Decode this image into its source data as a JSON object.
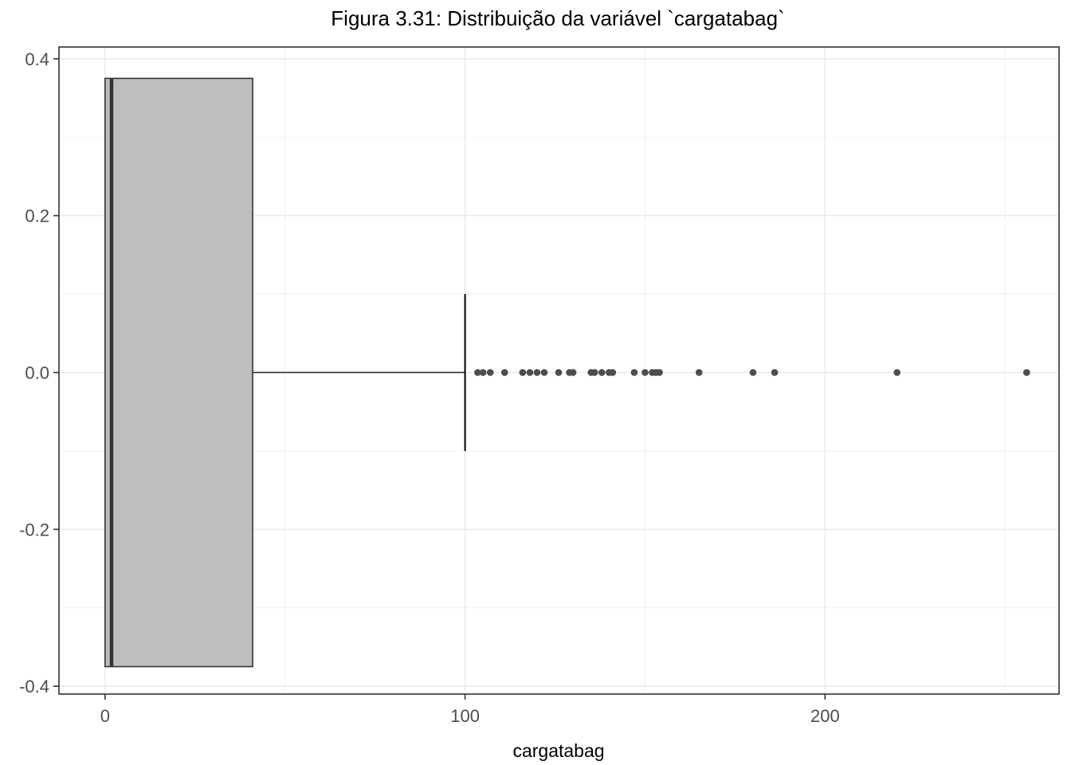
{
  "chart_data": {
    "type": "boxplot",
    "title": "Figura 3.31: Distribuição da variável `cargatabag`",
    "xlabel": "cargatabag",
    "ylabel": "",
    "xlim": [
      -12.8,
      265
    ],
    "ylim": [
      -0.41,
      0.415
    ],
    "x_ticks": [
      0,
      100,
      200
    ],
    "x_tick_labels": [
      "0",
      "100",
      "200"
    ],
    "y_ticks": [
      -0.4,
      -0.2,
      0.0,
      0.2,
      0.4
    ],
    "y_tick_labels": [
      "-0.4",
      "-0.2",
      "0.0",
      "0.2",
      "0.4"
    ],
    "grid": true,
    "box": {
      "min": 0,
      "q1": 0,
      "median": 1.8,
      "q3": 41,
      "whisker_high": 100,
      "y_low": -0.375,
      "y_high": 0.375,
      "whisker_cap": [
        -0.1,
        0.1
      ],
      "fill": "#bebebe",
      "stroke": "#333333"
    },
    "outliers": [
      103.5,
      105,
      107,
      111,
      116,
      118,
      120,
      122,
      126,
      129,
      130,
      135,
      136,
      138,
      140,
      141,
      147,
      150,
      152,
      153,
      154,
      165,
      180,
      186,
      220,
      256
    ],
    "outlier_color": "#4d4d4d"
  }
}
